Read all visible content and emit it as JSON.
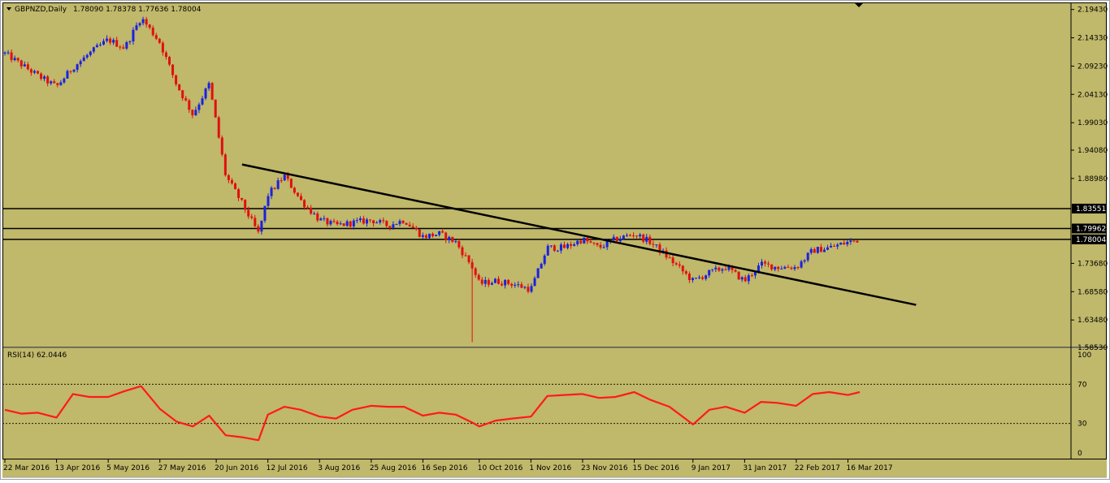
{
  "colors": {
    "background": "#c0b86a",
    "frame": "#000000",
    "bull_candle": "#1a22e0",
    "bear_candle": "#e01010",
    "rsi_line": "#ff1a1a",
    "trendline": "#000000",
    "hline": "#000000"
  },
  "header": {
    "symbol_label": "GBPNZD,Daily",
    "ohlc_label": "1.78090 1.78378 1.77636 1.78004",
    "menu_icon": "triangle-down-icon"
  },
  "rsi_panel": {
    "label": "RSI(14) 62.0446"
  },
  "chart_data": [
    {
      "type": "candlestick",
      "title": "GBPNZD,Daily",
      "ohlc": {
        "open": 1.7809,
        "high": 1.78378,
        "low": 1.77636,
        "close": 1.78004
      },
      "y_ticks": [
        "2.19430",
        "2.14330",
        "2.09230",
        "2.04130",
        "1.99030",
        "1.94080",
        "1.88980",
        "1.73680",
        "1.68580",
        "1.63480",
        "1.58530"
      ],
      "y_tick_values": [
        2.1943,
        2.1433,
        2.0923,
        2.0413,
        1.9903,
        1.9408,
        1.8898,
        1.7368,
        1.6858,
        1.6348,
        1.5853
      ],
      "ylim": [
        1.5853,
        2.207
      ],
      "x_labels": [
        "22 Mar 2016",
        "13 Apr 2016",
        "5 May 2016",
        "27 May 2016",
        "20 Jun 2016",
        "12 Jul 2016",
        "3 Aug 2016",
        "25 Aug 2016",
        "16 Sep 2016",
        "10 Oct 2016",
        "1 Nov 2016",
        "23 Nov 2016",
        "15 Dec 2016",
        "9 Jan 2017",
        "31 Jan 2017",
        "22 Feb 2017",
        "16 Mar 2017"
      ],
      "horizontal_levels": [
        {
          "price": 1.83551,
          "label": "1.83551"
        },
        {
          "price": 1.79962,
          "label": "1.79962"
        },
        {
          "price": 1.78004,
          "label": "1.78004"
        }
      ],
      "trendline": {
        "start": {
          "date": "1 Jul 2016",
          "price": 1.915
        },
        "end": {
          "date": "14 Apr 2017",
          "price": 1.662
        }
      },
      "closes_weekly": [
        {
          "date": "22 Mar 2016",
          "close": 2.115
        },
        {
          "date": "29 Mar 2016",
          "close": 2.095
        },
        {
          "date": "5 Apr 2016",
          "close": 2.075
        },
        {
          "date": "13 Apr 2016",
          "close": 2.055
        },
        {
          "date": "20 Apr 2016",
          "close": 2.09
        },
        {
          "date": "27 Apr 2016",
          "close": 2.115
        },
        {
          "date": "5 May 2016",
          "close": 2.14
        },
        {
          "date": "12 May 2016",
          "close": 2.125
        },
        {
          "date": "19 May 2016",
          "close": 2.18
        },
        {
          "date": "27 May 2016",
          "close": 2.135
        },
        {
          "date": "3 Jun 2016",
          "close": 2.06
        },
        {
          "date": "10 Jun 2016",
          "close": 2.005
        },
        {
          "date": "17 Jun 2016",
          "close": 2.06
        },
        {
          "date": "24 Jun 2016",
          "close": 1.895
        },
        {
          "date": "1 Jul 2016",
          "close": 1.845
        },
        {
          "date": "8 Jul 2016",
          "close": 1.79
        },
        {
          "date": "12 Jul 2016",
          "close": 1.86
        },
        {
          "date": "19 Jul 2016",
          "close": 1.895
        },
        {
          "date": "26 Jul 2016",
          "close": 1.85
        },
        {
          "date": "3 Aug 2016",
          "close": 1.815
        },
        {
          "date": "10 Aug 2016",
          "close": 1.805
        },
        {
          "date": "17 Aug 2016",
          "close": 1.81
        },
        {
          "date": "25 Aug 2016",
          "close": 1.815
        },
        {
          "date": "1 Sep 2016",
          "close": 1.805
        },
        {
          "date": "8 Sep 2016",
          "close": 1.815
        },
        {
          "date": "16 Sep 2016",
          "close": 1.785
        },
        {
          "date": "23 Sep 2016",
          "close": 1.79
        },
        {
          "date": "30 Sep 2016",
          "close": 1.775
        },
        {
          "date": "7 Oct 2016",
          "close": 1.73
        },
        {
          "date": "10 Oct 2016",
          "close": 1.7
        },
        {
          "date": "17 Oct 2016",
          "close": 1.705
        },
        {
          "date": "24 Oct 2016",
          "close": 1.7
        },
        {
          "date": "1 Nov 2016",
          "close": 1.69
        },
        {
          "date": "8 Nov 2016",
          "close": 1.765
        },
        {
          "date": "15 Nov 2016",
          "close": 1.765
        },
        {
          "date": "23 Nov 2016",
          "close": 1.78
        },
        {
          "date": "30 Nov 2016",
          "close": 1.765
        },
        {
          "date": "7 Dec 2016",
          "close": 1.78
        },
        {
          "date": "15 Dec 2016",
          "close": 1.79
        },
        {
          "date": "22 Dec 2016",
          "close": 1.775
        },
        {
          "date": "30 Dec 2016",
          "close": 1.745
        },
        {
          "date": "9 Jan 2017",
          "close": 1.705
        },
        {
          "date": "16 Jan 2017",
          "close": 1.72
        },
        {
          "date": "23 Jan 2017",
          "close": 1.73
        },
        {
          "date": "31 Jan 2017",
          "close": 1.705
        },
        {
          "date": "7 Feb 2017",
          "close": 1.735
        },
        {
          "date": "14 Feb 2017",
          "close": 1.73
        },
        {
          "date": "22 Feb 2017",
          "close": 1.73
        },
        {
          "date": "1 Mar 2017",
          "close": 1.76
        },
        {
          "date": "8 Mar 2017",
          "close": 1.765
        },
        {
          "date": "16 Mar 2017",
          "close": 1.775
        },
        {
          "date": "21 Mar 2017",
          "close": 1.78
        }
      ]
    },
    {
      "type": "line",
      "title": "RSI(14) 62.0446",
      "y_ticks": [
        "100",
        "70",
        "30",
        "0"
      ],
      "y_tick_values": [
        100,
        70,
        30,
        0
      ],
      "ylim": [
        0,
        100
      ],
      "levels": [
        70,
        30
      ],
      "series": [
        {
          "name": "RSI(14)",
          "points": [
            {
              "date": "22 Mar 2016",
              "value": 44
            },
            {
              "date": "29 Mar 2016",
              "value": 40
            },
            {
              "date": "5 Apr 2016",
              "value": 41
            },
            {
              "date": "13 Apr 2016",
              "value": 36
            },
            {
              "date": "20 Apr 2016",
              "value": 60
            },
            {
              "date": "27 Apr 2016",
              "value": 57
            },
            {
              "date": "5 May 2016",
              "value": 57
            },
            {
              "date": "12 May 2016",
              "value": 63
            },
            {
              "date": "19 May 2016",
              "value": 68
            },
            {
              "date": "27 May 2016",
              "value": 45
            },
            {
              "date": "3 Jun 2016",
              "value": 32
            },
            {
              "date": "10 Jun 2016",
              "value": 27
            },
            {
              "date": "17 Jun 2016",
              "value": 38
            },
            {
              "date": "24 Jun 2016",
              "value": 18
            },
            {
              "date": "1 Jul 2016",
              "value": 16
            },
            {
              "date": "8 Jul 2016",
              "value": 13
            },
            {
              "date": "12 Jul 2016",
              "value": 39
            },
            {
              "date": "19 Jul 2016",
              "value": 47
            },
            {
              "date": "26 Jul 2016",
              "value": 44
            },
            {
              "date": "3 Aug 2016",
              "value": 37
            },
            {
              "date": "10 Aug 2016",
              "value": 35
            },
            {
              "date": "17 Aug 2016",
              "value": 44
            },
            {
              "date": "25 Aug 2016",
              "value": 48
            },
            {
              "date": "1 Sep 2016",
              "value": 47
            },
            {
              "date": "8 Sep 2016",
              "value": 47
            },
            {
              "date": "16 Sep 2016",
              "value": 38
            },
            {
              "date": "23 Sep 2016",
              "value": 41
            },
            {
              "date": "30 Sep 2016",
              "value": 39
            },
            {
              "date": "7 Oct 2016",
              "value": 31
            },
            {
              "date": "10 Oct 2016",
              "value": 27
            },
            {
              "date": "17 Oct 2016",
              "value": 33
            },
            {
              "date": "24 Oct 2016",
              "value": 35
            },
            {
              "date": "1 Nov 2016",
              "value": 37
            },
            {
              "date": "8 Nov 2016",
              "value": 58
            },
            {
              "date": "15 Nov 2016",
              "value": 59
            },
            {
              "date": "23 Nov 2016",
              "value": 60
            },
            {
              "date": "30 Nov 2016",
              "value": 56
            },
            {
              "date": "7 Dec 2016",
              "value": 57
            },
            {
              "date": "15 Dec 2016",
              "value": 62
            },
            {
              "date": "22 Dec 2016",
              "value": 54
            },
            {
              "date": "30 Dec 2016",
              "value": 47
            },
            {
              "date": "9 Jan 2017",
              "value": 29
            },
            {
              "date": "16 Jan 2017",
              "value": 44
            },
            {
              "date": "23 Jan 2017",
              "value": 47
            },
            {
              "date": "31 Jan 2017",
              "value": 41
            },
            {
              "date": "7 Feb 2017",
              "value": 52
            },
            {
              "date": "14 Feb 2017",
              "value": 51
            },
            {
              "date": "22 Feb 2017",
              "value": 48
            },
            {
              "date": "1 Mar 2017",
              "value": 60
            },
            {
              "date": "8 Mar 2017",
              "value": 62
            },
            {
              "date": "16 Mar 2017",
              "value": 59
            },
            {
              "date": "21 Mar 2017",
              "value": 62
            }
          ]
        }
      ]
    }
  ]
}
